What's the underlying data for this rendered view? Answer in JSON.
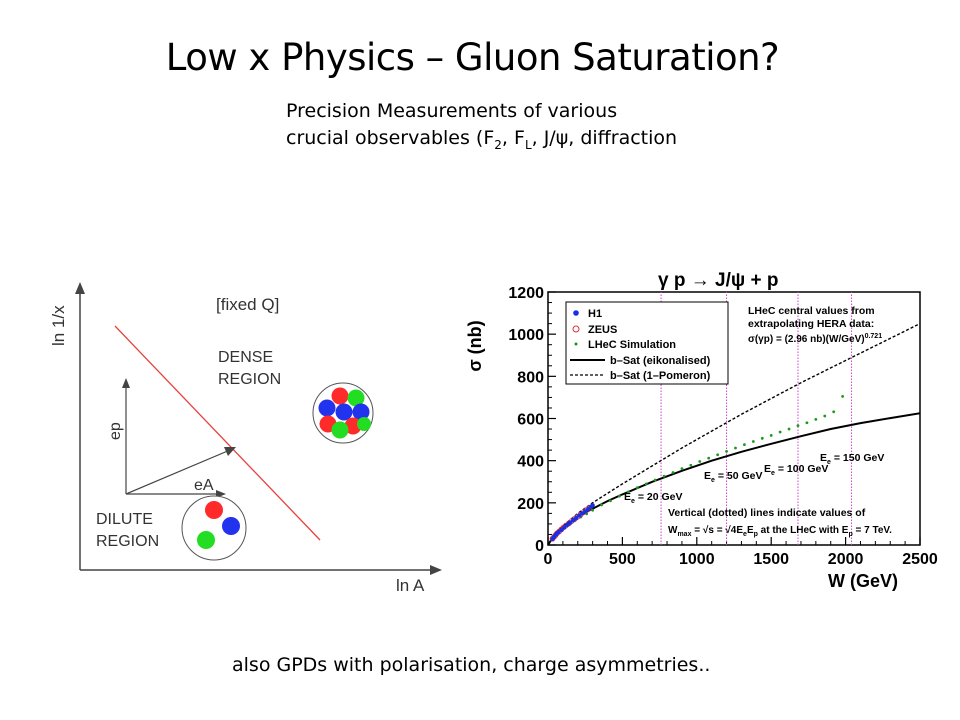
{
  "slide": {
    "title": "Low x Physics – Gluon Saturation?",
    "subtitle_line1": "Precision Measurements of various",
    "subtitle_line2_pre": "crucial observables (F",
    "subtitle_sub1": "2",
    "subtitle_mid": ", F",
    "subtitle_sub2": "L",
    "subtitle_post": ", J/ψ, diffraction",
    "footer": "also GPDs with polarisation, charge asymmetries.."
  },
  "diagram": {
    "y_axis_label": "ln 1/x",
    "x_axis_label": "ln A",
    "fixed_q_label": "[fixed Q]",
    "dense_line1": "DENSE",
    "dense_line2": "REGION",
    "dilute_line1": "DILUTE",
    "dilute_line2": "REGION",
    "ep_label": "ep",
    "ea_label": "eA",
    "colors": {
      "boundary": "#e8413c",
      "red": "#ff2a2a",
      "green": "#22dd22",
      "blue": "#2233ee"
    }
  },
  "chart_data": {
    "type": "scatter",
    "title": "γ p → J/ψ + p",
    "xlabel": "W  (GeV)",
    "ylabel": "σ  (nb)",
    "xlim": [
      0,
      2500
    ],
    "ylim": [
      0,
      1200
    ],
    "x_ticks": [
      0,
      500,
      1000,
      1500,
      2000,
      2500
    ],
    "y_ticks": [
      0,
      200,
      400,
      600,
      800,
      1000,
      1200
    ],
    "legend": {
      "placement": "top-left",
      "items": [
        {
          "label": "H1",
          "kind": "dot",
          "color": "#1a2ee8"
        },
        {
          "label": "ZEUS",
          "kind": "circle",
          "color": "#e03030"
        },
        {
          "label": "LHeC Simulation",
          "kind": "dot",
          "color": "#1a9a1a"
        },
        {
          "label": "b–Sat (eikonalised)",
          "kind": "solid"
        },
        {
          "label": "b–Sat (1–Pomeron)",
          "kind": "dashed"
        }
      ]
    },
    "fit_text_line1": "LHeC central values from",
    "fit_text_line2": "extrapolating HERA data:",
    "fit_formula": "σ(γp) = (2.96 nb)(W/GeV)",
    "fit_exponent": "0.721",
    "energy_labels": [
      {
        "text": "E",
        "sub": "e",
        "value": " = 20 GeV"
      },
      {
        "text": "E",
        "sub": "e",
        "value": " = 50 GeV"
      },
      {
        "text": "E",
        "sub": "e",
        "value": " = 100 GeV"
      },
      {
        "text": "E",
        "sub": "e",
        "value": " = 150 GeV"
      }
    ],
    "vertical_lines_w": [
      760,
      1200,
      1680,
      2040
    ],
    "note_line1": "Vertical (dotted) lines indicate values of",
    "note_line2": "W",
    "note_line2_sub": "max",
    "note_line2_rest": " = √s = √4E",
    "note_line2_sub2": "e",
    "note_line2_rest2": "E",
    "note_line2_sub3": "p",
    "note_line2_rest3": " at the LHeC with E",
    "note_line2_sub4": "p",
    "note_line2_rest4": " = 7 TeV.",
    "series": [
      {
        "name": "H1",
        "x": [
          30,
          40,
          55,
          70,
          90,
          110,
          130,
          150,
          170,
          190,
          210,
          230,
          250,
          270,
          290,
          300
        ],
        "y": [
          28,
          38,
          50,
          60,
          72,
          84,
          96,
          106,
          118,
          128,
          140,
          150,
          160,
          170,
          182,
          188
        ]
      },
      {
        "name": "ZEUS",
        "x": [
          30,
          40,
          50,
          60,
          75,
          90,
          105,
          120,
          140,
          160,
          180,
          200,
          220,
          240,
          260,
          280
        ],
        "y": [
          30,
          38,
          46,
          55,
          64,
          74,
          84,
          92,
          102,
          114,
          124,
          134,
          144,
          156,
          166,
          176
        ]
      },
      {
        "name": "LHeC Simulation",
        "x": [
          100,
          140,
          180,
          220,
          260,
          300,
          360,
          420,
          480,
          540,
          600,
          660,
          720,
          780,
          840,
          900,
          960,
          1020,
          1080,
          1140,
          1200,
          1260,
          1320,
          1380,
          1440,
          1500,
          1560,
          1620,
          1680,
          1740,
          1800,
          1860,
          1920,
          1980
        ],
        "y": [
          75,
          95,
          115,
          132,
          148,
          165,
          190,
          210,
          232,
          252,
          272,
          290,
          308,
          326,
          344,
          362,
          378,
          396,
          412,
          428,
          444,
          460,
          476,
          491,
          506,
          520,
          536,
          550,
          566,
          580,
          596,
          612,
          632,
          705
        ]
      }
    ],
    "curves": {
      "eikonalised": {
        "x": [
          0,
          50,
          100,
          200,
          300,
          400,
          500,
          700,
          900,
          1100,
          1300,
          1500,
          1700,
          1900,
          2100,
          2300,
          2500
        ],
        "y": [
          0,
          55,
          85,
          135,
          172,
          208,
          240,
          300,
          352,
          400,
          442,
          480,
          516,
          550,
          578,
          602,
          625
        ]
      },
      "one_pomeron": {
        "x": [
          0,
          50,
          100,
          200,
          300,
          400,
          500,
          700,
          900,
          1100,
          1300,
          1500,
          1700,
          1900,
          2100,
          2300,
          2500
        ],
        "y": [
          0,
          55,
          90,
          150,
          200,
          245,
          290,
          375,
          460,
          540,
          620,
          695,
          770,
          840,
          910,
          980,
          1050
        ]
      }
    }
  }
}
